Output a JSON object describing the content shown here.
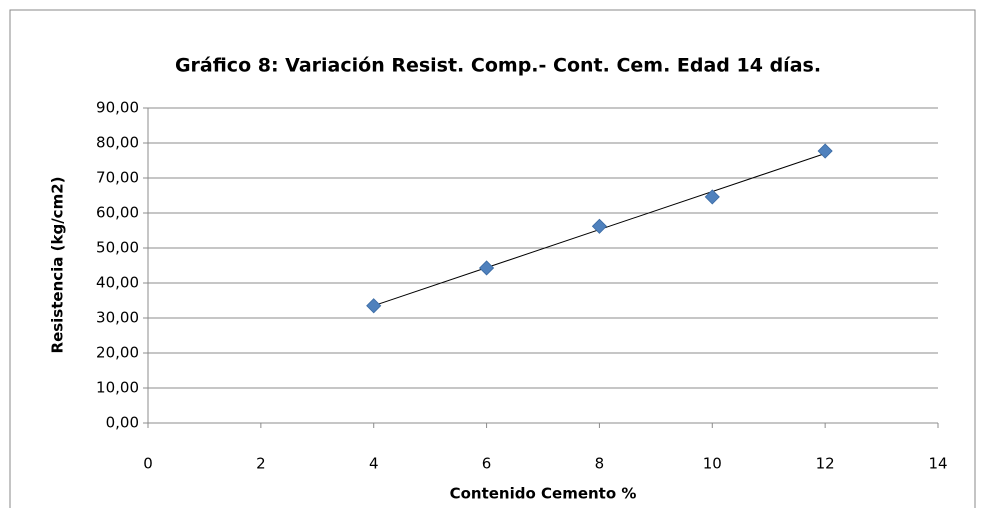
{
  "chart_data": {
    "type": "scatter",
    "title": "Gráfico 8: Variación Resist. Comp.- Cont. Cem. Edad 14 días.",
    "x_label": "Contenido Cemento %",
    "y_label": "Resistencia (kg/cm2)",
    "x": [
      4,
      6,
      8,
      10,
      12
    ],
    "values": [
      33.5,
      44.3,
      56.2,
      64.6,
      77.7
    ],
    "color": "#4f81bd",
    "trendline": "linear",
    "xlim": [
      0,
      14
    ],
    "xticks": [
      0,
      2,
      4,
      6,
      8,
      10,
      12,
      14
    ],
    "ylim": [
      0,
      90
    ],
    "yticks": [
      {
        "value": 0,
        "label": "0,00"
      },
      {
        "value": 10,
        "label": "10,00"
      },
      {
        "value": 20,
        "label": "20,00"
      },
      {
        "value": 30,
        "label": "30,00"
      },
      {
        "value": 40,
        "label": "40,00"
      },
      {
        "value": 50,
        "label": "50,00"
      },
      {
        "value": 60,
        "label": "60,00"
      },
      {
        "value": 70,
        "label": "70,00"
      },
      {
        "value": 80,
        "label": "80,00"
      },
      {
        "value": 90,
        "label": "90,00"
      }
    ],
    "grid": true
  }
}
